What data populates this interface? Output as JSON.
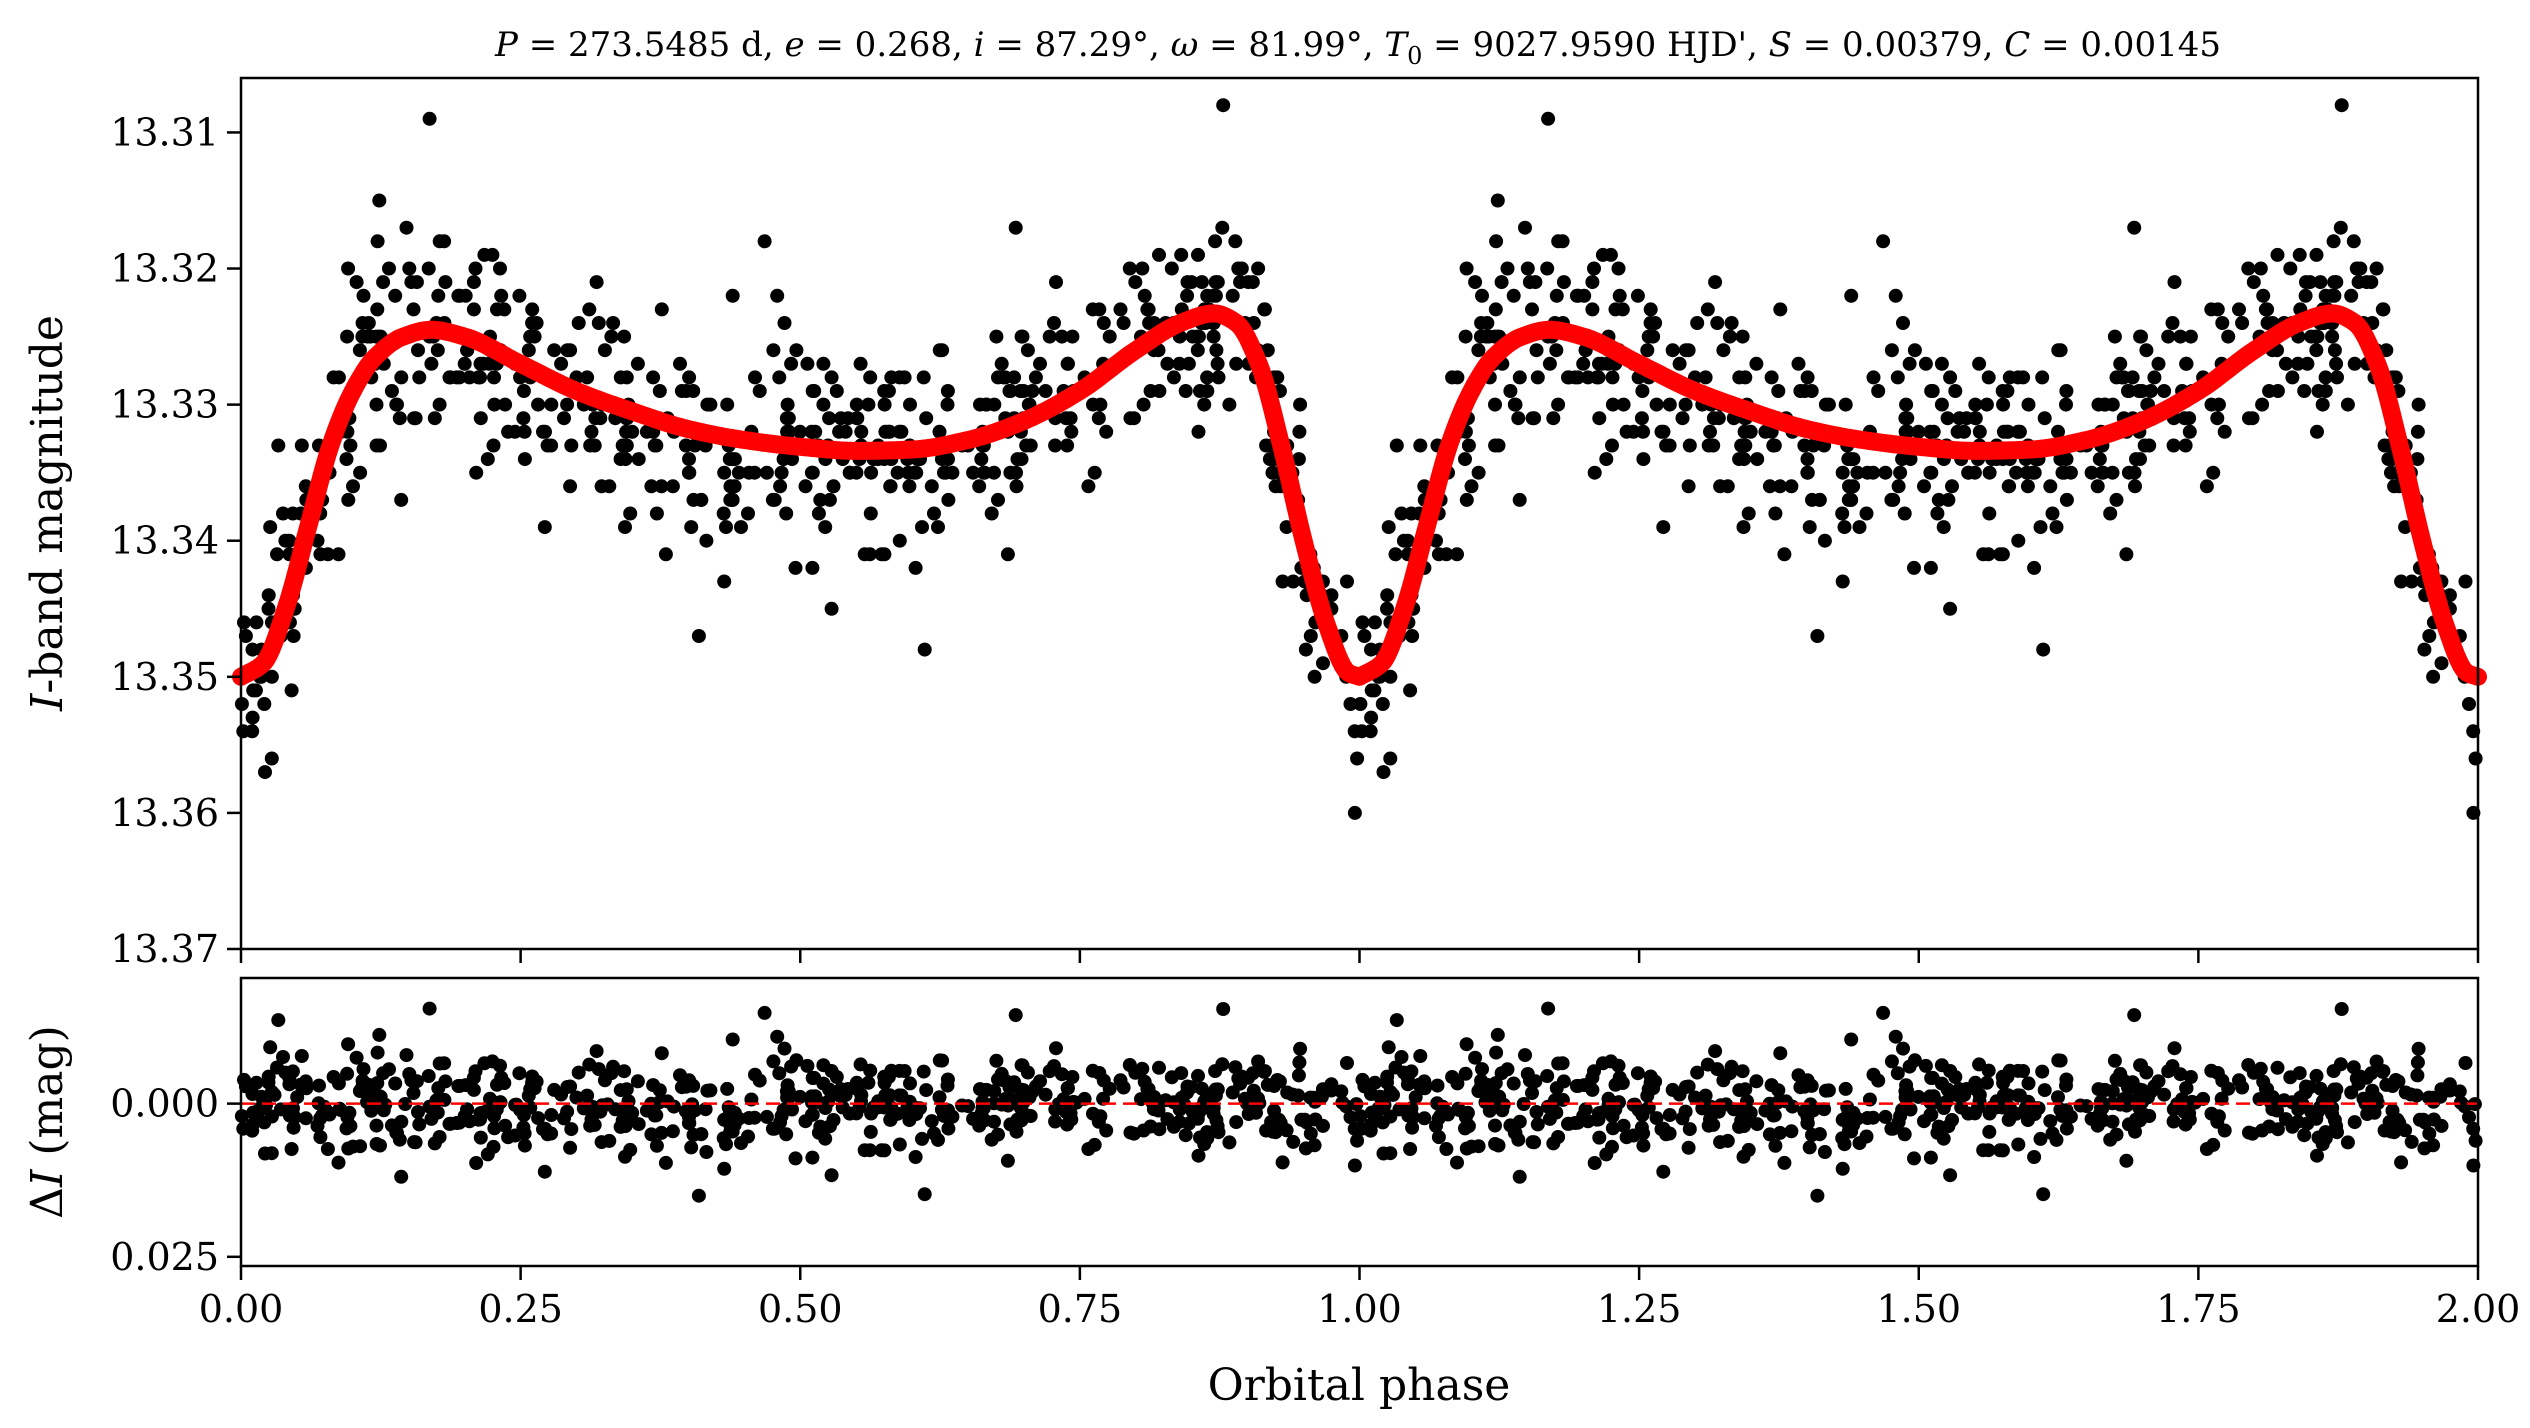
{
  "chart_data": [
    {
      "panel": "light-curve",
      "type": "scatter",
      "title": "P = 273.5485 d, e = 0.268, i = 87.29°, ω = 81.99°, T0 = 9027.9590 HJD', S = 0.00379, C = 0.00145",
      "title_parts": {
        "P": "P",
        "P_val": " = 273.5485 d, ",
        "e": "e",
        "e_val": " = 0.268, ",
        "i": "i",
        "i_val": " = 87.29°, ",
        "w": "ω",
        "w_val": " = 81.99°, ",
        "T": "T",
        "T_sub": "0",
        "T_val": " = 9027.9590 HJD', ",
        "S": "S",
        "S_val": " = 0.00379, ",
        "C": "C",
        "C_val": " = 0.00145"
      },
      "ylabel_italic": "I",
      "ylabel_rest": "-band magnitude",
      "xlim": [
        0.0,
        2.0
      ],
      "ylim": [
        13.37,
        13.306
      ],
      "y_inverted": true,
      "y_ticks": [
        13.31,
        13.32,
        13.33,
        13.34,
        13.35,
        13.36,
        13.37
      ],
      "y_tick_labels": [
        "13.31",
        "13.32",
        "13.33",
        "13.34",
        "13.35",
        "13.36",
        "13.37"
      ],
      "series": [
        {
          "kind": "points",
          "color": "#000000",
          "note": "photometric observations plotted twice (phase and phase+1)"
        },
        {
          "kind": "model-curve",
          "color": "#ff0000",
          "anchors": [
            [
              0.0,
              13.35
            ],
            [
              0.02,
              13.349
            ],
            [
              0.04,
              13.345
            ],
            [
              0.06,
              13.339
            ],
            [
              0.08,
              13.333
            ],
            [
              0.1,
              13.329
            ],
            [
              0.12,
              13.3265
            ],
            [
              0.145,
              13.325
            ],
            [
              0.17,
              13.3245
            ],
            [
              0.2,
              13.325
            ],
            [
              0.25,
              13.327
            ],
            [
              0.3,
              13.329
            ],
            [
              0.35,
              13.3305
            ],
            [
              0.4,
              13.3318
            ],
            [
              0.45,
              13.3326
            ],
            [
              0.5,
              13.3331
            ],
            [
              0.55,
              13.3334
            ],
            [
              0.6,
              13.3333
            ],
            [
              0.65,
              13.3326
            ],
            [
              0.7,
              13.3312
            ],
            [
              0.75,
              13.329
            ],
            [
              0.8,
              13.326
            ],
            [
              0.84,
              13.324
            ],
            [
              0.87,
              13.3233
            ],
            [
              0.89,
              13.324
            ],
            [
              0.91,
              13.327
            ],
            [
              0.93,
              13.333
            ],
            [
              0.95,
              13.34
            ],
            [
              0.97,
              13.346
            ],
            [
              0.99,
              13.3497
            ],
            [
              1.0,
              13.35
            ]
          ]
        }
      ]
    },
    {
      "panel": "residuals",
      "type": "scatter",
      "xlabel": "Orbital phase",
      "ylabel_delta": "Δ",
      "ylabel_italic": "I",
      "ylabel_rest": " (mag)",
      "xlim": [
        0.0,
        2.0
      ],
      "ylim": [
        0.0265,
        -0.0205
      ],
      "y_inverted": true,
      "x_ticks": [
        0.0,
        0.25,
        0.5,
        0.75,
        1.0,
        1.25,
        1.5,
        1.75,
        2.0
      ],
      "x_tick_labels": [
        "0.00",
        "0.25",
        "0.50",
        "0.75",
        "1.00",
        "1.25",
        "1.50",
        "1.75",
        "2.00"
      ],
      "y_ticks": [
        0.0,
        0.025
      ],
      "y_tick_labels": [
        "0.000",
        "0.025"
      ],
      "zero_line": {
        "y": 0.0,
        "color": "#ff0000",
        "style": "dashed"
      },
      "series": [
        {
          "kind": "points",
          "color": "#000000"
        }
      ]
    }
  ]
}
